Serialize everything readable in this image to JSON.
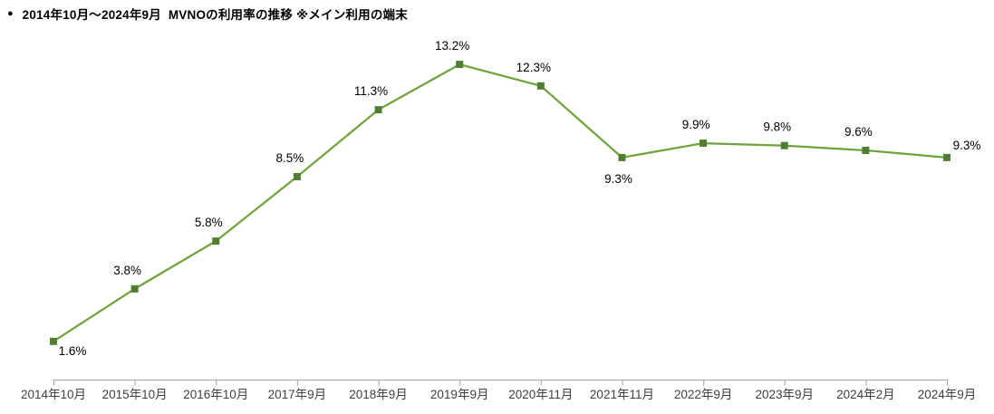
{
  "title": {
    "bullet": "●",
    "text": "2014年10月～2024年9月  MVNOの利用率の推移 ※メイン利用の端末"
  },
  "chart_data": {
    "type": "line",
    "title": "2014年10月～2024年9月  MVNOの利用率の推移 ※メイン利用の端末",
    "categories": [
      "2014年10月",
      "2015年10月",
      "2016年10月",
      "2017年9月",
      "2018年9月",
      "2019年9月",
      "2020年11月",
      "2021年11月",
      "2022年9月",
      "2023年9月",
      "2024年2月",
      "2024年9月"
    ],
    "values": [
      1.6,
      3.8,
      5.8,
      8.5,
      11.3,
      13.2,
      12.3,
      9.3,
      9.9,
      9.8,
      9.6,
      9.3
    ],
    "labels": [
      "1.6%",
      "3.8%",
      "5.8%",
      "8.5%",
      "11.3%",
      "13.2%",
      "12.3%",
      "9.3%",
      "9.9%",
      "9.8%",
      "9.6%",
      "9.3%"
    ],
    "label_positions": [
      "below-right",
      "above",
      "above",
      "above",
      "above",
      "above",
      "above",
      "below",
      "above",
      "above",
      "above",
      "above-right"
    ],
    "xlabel": "",
    "ylabel": "",
    "ylim": [
      0,
      14
    ],
    "grid": false,
    "legend": "none",
    "y_axis_visible": false,
    "marker_shape": "square",
    "line_color": "#6fa33c",
    "marker_color": "#507e32",
    "axis_color": "#adadad",
    "data_label_color": "#000000",
    "tick_label_color": "#404040"
  }
}
